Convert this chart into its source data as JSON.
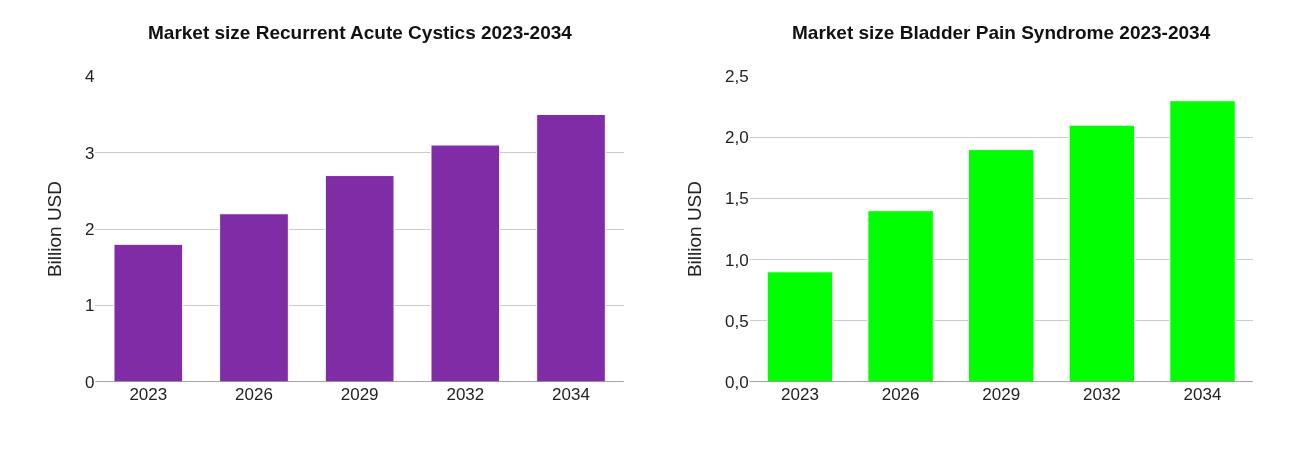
{
  "chart_data": [
    {
      "type": "bar",
      "title": "Market size Recurrent Acute Cystics 2023-2034",
      "ylabel": "Billion USD",
      "categories": [
        "2023",
        "2026",
        "2029",
        "2032",
        "2034"
      ],
      "values": [
        1.8,
        2.2,
        2.7,
        3.1,
        3.5
      ],
      "color": "#7f2ca6",
      "ylim": [
        0,
        4
      ],
      "yticks": [
        0,
        1,
        2,
        3,
        4
      ],
      "grid": "y"
    },
    {
      "type": "bar",
      "title": "Market size Bladder Pain Syndrome 2023-2034",
      "ylabel": "Billion USD",
      "categories": [
        "2023",
        "2026",
        "2029",
        "2032",
        "2034"
      ],
      "values": [
        0.9,
        1.4,
        1.9,
        2.1,
        2.3
      ],
      "color": "#00ff00",
      "ylim": [
        0,
        2.5
      ],
      "yticks": [
        {
          "value": 0,
          "label": "0,0"
        },
        {
          "value": 0.5,
          "label": "0,5"
        },
        {
          "value": 1,
          "label": "1,0"
        },
        {
          "value": 1.5,
          "label": "1,5"
        },
        {
          "value": 2,
          "label": "2,0"
        },
        {
          "value": 2.5,
          "label": "2,5"
        }
      ],
      "grid": "y"
    }
  ]
}
